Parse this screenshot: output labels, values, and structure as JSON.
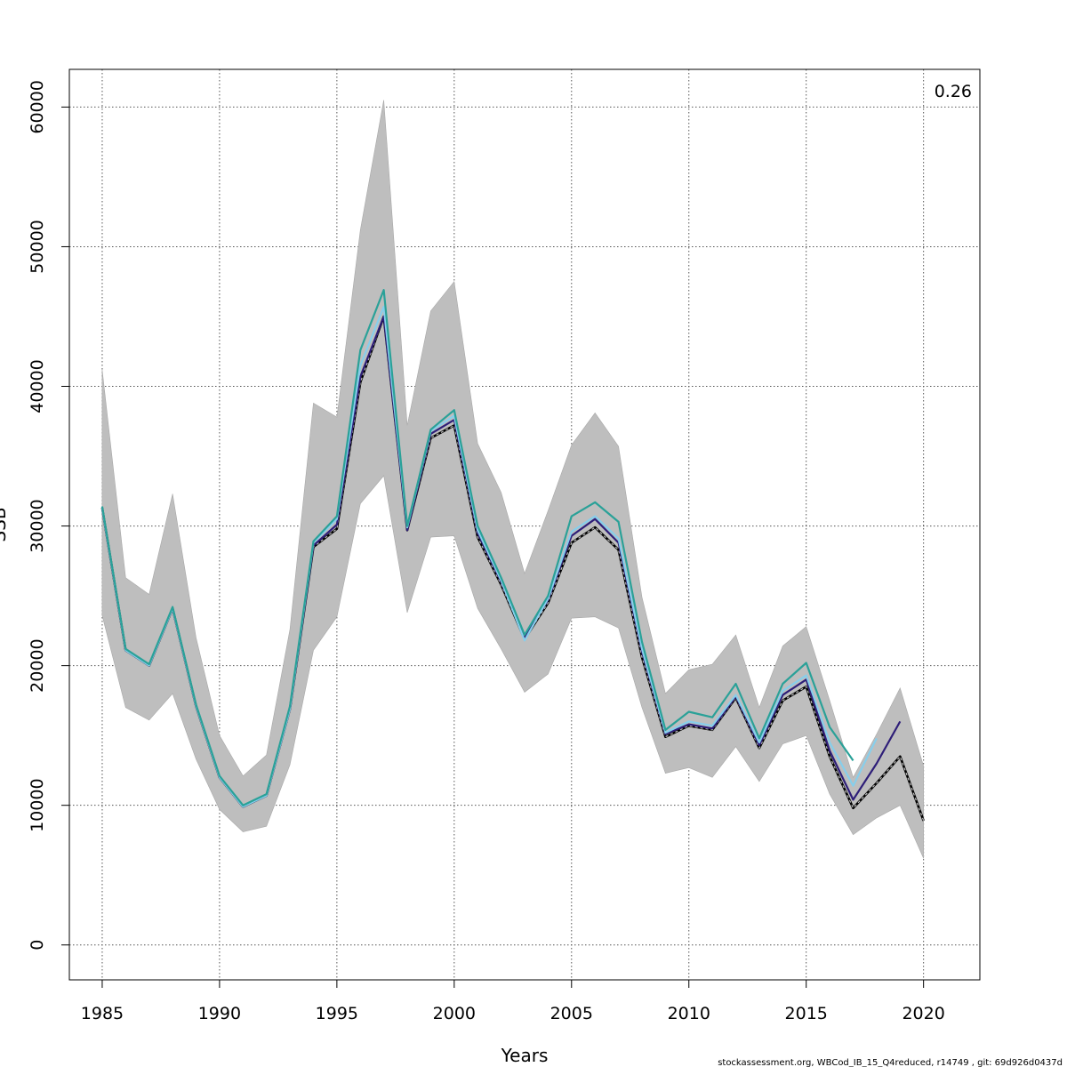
{
  "chart_data": {
    "type": "line",
    "title": "",
    "xlabel": "Years",
    "ylabel": "SSB",
    "xlim": [
      1983.6,
      2022.4
    ],
    "ylim": [
      -2500,
      62700
    ],
    "x_ticks": [
      "1985",
      "1990",
      "1995",
      "2000",
      "2005",
      "2010",
      "2015",
      "2020"
    ],
    "y_ticks": [
      "0",
      "10000",
      "20000",
      "30000",
      "40000",
      "50000",
      "60000"
    ],
    "grid": true,
    "corner_label": "0.26",
    "footer": "stockassessment.org, WBCod_IB_15_Q4reduced, r14749 , git: 69d926d0437d",
    "band": {
      "x": [
        1985,
        1986,
        1987,
        1988,
        1989,
        1990,
        1991,
        1992,
        1993,
        1994,
        1995,
        1996,
        1997,
        1998,
        1999,
        2000,
        2001,
        2002,
        2003,
        2004,
        2005,
        2006,
        2007,
        2008,
        2009,
        2010,
        2011,
        2012,
        2013,
        2014,
        2015,
        2016,
        2017,
        2018,
        2019,
        2020
      ],
      "upper": [
        41200,
        26300,
        25100,
        32300,
        22000,
        15000,
        12100,
        13600,
        22600,
        38800,
        37800,
        51200,
        60500,
        37200,
        45400,
        47500,
        35900,
        32400,
        26600,
        31100,
        35800,
        38100,
        35700,
        24900,
        18000,
        19700,
        20100,
        22200,
        17000,
        21400,
        22800,
        17500,
        12000,
        15100,
        18400,
        12800
      ],
      "lower": [
        23600,
        17000,
        16100,
        18000,
        13300,
        9700,
        8100,
        8500,
        12900,
        21100,
        23500,
        31600,
        33600,
        23800,
        29200,
        29300,
        24100,
        21200,
        18100,
        19400,
        23400,
        23500,
        22700,
        17000,
        12300,
        12700,
        12000,
        14200,
        11700,
        14400,
        15000,
        10800,
        7900,
        9100,
        10000,
        6200
      ]
    },
    "series": [
      {
        "color": "#202020",
        "dashed": true,
        "x": [
          1985,
          1986,
          1987,
          1988,
          1989,
          1990,
          1991,
          1992,
          1993,
          1994,
          1995,
          1996,
          1997,
          1998,
          1999,
          2000,
          2001,
          2002,
          2003,
          2004,
          2005,
          2006,
          2007,
          2008,
          2009,
          2010,
          2011,
          2012,
          2013,
          2014,
          2015,
          2016,
          2017,
          2018,
          2019,
          2020
        ],
        "values": [
          31300,
          21100,
          20000,
          24100,
          17100,
          12000,
          9900,
          10700,
          16900,
          28500,
          29800,
          40300,
          45000,
          29700,
          36300,
          37200,
          29200,
          25800,
          21900,
          24500,
          28800,
          29900,
          28300,
          20600,
          14900,
          15700,
          15400,
          17700,
          14100,
          17500,
          18500,
          13500,
          9800,
          11600,
          13500,
          8900
        ]
      },
      {
        "color": "#2e1e78",
        "dashed": false,
        "x": [
          1985,
          1986,
          1987,
          1988,
          1989,
          1990,
          1991,
          1992,
          1993,
          1994,
          1995,
          1996,
          1997,
          1998,
          1999,
          2000,
          2001,
          2002,
          2003,
          2004,
          2005,
          2006,
          2007,
          2008,
          2009,
          2010,
          2011,
          2012,
          2013,
          2014,
          2015,
          2016,
          2017,
          2018,
          2019
        ],
        "values": [
          31300,
          21100,
          20000,
          24100,
          17100,
          12000,
          9900,
          10700,
          16900,
          28600,
          30100,
          40700,
          45000,
          29700,
          36600,
          37600,
          29500,
          26000,
          22000,
          24700,
          29300,
          30500,
          28800,
          21000,
          15100,
          15800,
          15500,
          17800,
          14300,
          17900,
          19000,
          13900,
          10400,
          13000,
          16000
        ]
      },
      {
        "color": "#87ceeb",
        "dashed": false,
        "x": [
          1985,
          1986,
          1987,
          1988,
          1989,
          1990,
          1991,
          1992,
          1993,
          1994,
          1995,
          1996,
          1997,
          1998,
          1999,
          2000,
          2001,
          2002,
          2003,
          2004,
          2005,
          2006,
          2007,
          2008,
          2009,
          2010,
          2011,
          2012,
          2013,
          2014,
          2015,
          2016,
          2017,
          2018
        ],
        "values": [
          31300,
          21100,
          20000,
          24100,
          17100,
          12000,
          9900,
          10700,
          16900,
          28800,
          30500,
          41500,
          45700,
          29900,
          36800,
          37900,
          29700,
          26100,
          21800,
          24800,
          29600,
          30700,
          29100,
          21200,
          15200,
          16000,
          15700,
          17900,
          14500,
          18200,
          19300,
          14500,
          11400,
          14800
        ]
      },
      {
        "color": "#2aa198",
        "dashed": false,
        "x": [
          1985,
          1986,
          1987,
          1988,
          1989,
          1990,
          1991,
          1992,
          1993,
          1994,
          1995,
          1996,
          1997,
          1998,
          1999,
          2000,
          2001,
          2002,
          2003,
          2004,
          2005,
          2006,
          2007,
          2008,
          2009,
          2010,
          2011,
          2012,
          2013,
          2014,
          2015,
          2016,
          2017
        ],
        "values": [
          31400,
          21200,
          20100,
          24200,
          17200,
          12100,
          10000,
          10800,
          17100,
          28900,
          30700,
          42600,
          46900,
          30000,
          36900,
          38300,
          30000,
          26300,
          22200,
          25000,
          30700,
          31700,
          30300,
          21700,
          15400,
          16700,
          16300,
          18700,
          14800,
          18700,
          20200,
          15600,
          13200
        ]
      }
    ]
  }
}
